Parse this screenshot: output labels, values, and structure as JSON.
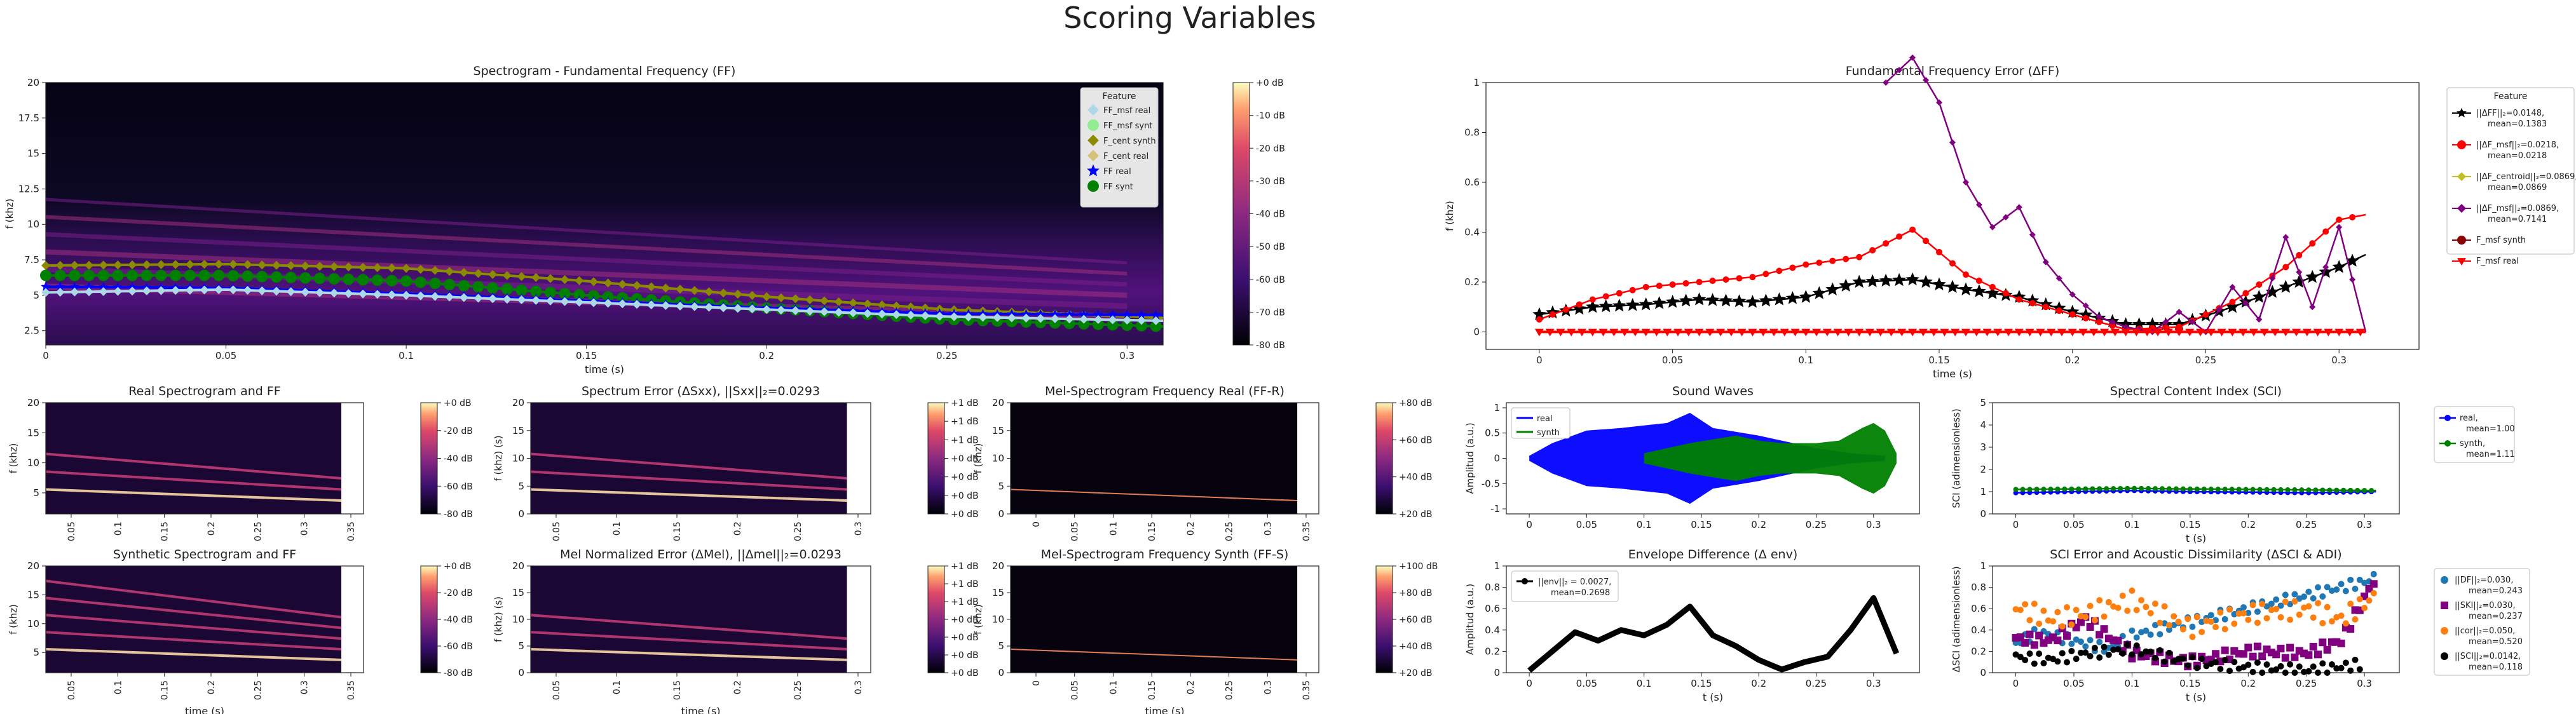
{
  "figure": {
    "title": "Scoring Variables"
  },
  "palette": {
    "black": "#000000",
    "blue": "#0000ff",
    "green": "#008000",
    "red": "#ff0000",
    "purple": "#800080",
    "orange": "#ff7f0e",
    "sky": "#1f77b4",
    "magma_low": "#000004",
    "magma_mid": "#8c2981",
    "magma_high": "#fcfdbf"
  },
  "chart_data": [
    {
      "id": "main-spectrogram",
      "type": "heatmap",
      "title": "Spectrogram - Fundamental Frequency (FF)",
      "xlabel": "time (s)",
      "ylabel": "f (khz)",
      "xlim": [
        0,
        0.31
      ],
      "ylim": [
        1.5,
        20
      ],
      "xticks": [
        0,
        0.05,
        0.1,
        0.15,
        0.2,
        0.25,
        0.3
      ],
      "yticks": [
        2.5,
        5,
        7.5,
        10,
        12.5,
        15,
        17.5,
        20
      ],
      "colorbar": {
        "ticks": [
          "+0 dB",
          "-10 dB",
          "-20 dB",
          "-30 dB",
          "-40 dB",
          "-50 dB",
          "-60 dB",
          "-70 dB",
          "-80 dB"
        ]
      },
      "legend": {
        "title": "Feature",
        "entries": [
          "FF_msf real",
          "FF_msf synt",
          "F_cent synth",
          "F_cent real",
          "FF real",
          "FF synt"
        ]
      },
      "series": [
        {
          "name": "F_cent synth",
          "color": "#8b8b00",
          "x": [
            0,
            0.05,
            0.1,
            0.15,
            0.2,
            0.25,
            0.31
          ],
          "y": [
            7.1,
            7.2,
            6.9,
            6.0,
            4.9,
            4.0,
            3.4
          ]
        },
        {
          "name": "FF synt",
          "color": "#008000",
          "x": [
            0,
            0.05,
            0.1,
            0.15,
            0.2,
            0.25,
            0.31
          ],
          "y": [
            6.4,
            6.4,
            6.0,
            5.0,
            4.1,
            3.3,
            2.8
          ]
        },
        {
          "name": "FF real",
          "color": "#0000ff",
          "x": [
            0,
            0.05,
            0.1,
            0.15,
            0.2,
            0.25,
            0.31
          ],
          "y": [
            5.6,
            5.5,
            5.1,
            4.6,
            4.1,
            3.7,
            3.6
          ]
        },
        {
          "name": "FF_msf real",
          "color": "#add8e6",
          "x": [
            0,
            0.05,
            0.1,
            0.15,
            0.2,
            0.25,
            0.31
          ],
          "y": [
            5.2,
            5.4,
            5.0,
            4.5,
            4.0,
            3.5,
            3.2
          ]
        }
      ]
    },
    {
      "id": "ff-error",
      "type": "line",
      "title": "Fundamental Frequency Error (ΔFF)",
      "xlabel": "time (s)",
      "ylabel": "f (khz)",
      "xlim": [
        -0.02,
        0.33
      ],
      "ylim": [
        -0.07,
        1.0
      ],
      "xticks": [
        0,
        0.05,
        0.1,
        0.15,
        0.2,
        0.25,
        0.3
      ],
      "yticks": [
        0,
        0.2,
        0.4,
        0.6,
        0.8,
        1.0
      ],
      "legend": {
        "title": "Feature",
        "entries": [
          "||ΔFF||₂=0.0148,\nmean=0.1383",
          "||ΔF_msf||₂=0.0218,\nmean=0.0218",
          "||ΔF_centroid||₂=0.0869,\nmean=0.0869",
          "||ΔF_msf||₂=0.0869,\nmean=0.7141",
          "F_msf synth",
          "F_msf real"
        ]
      },
      "series": [
        {
          "name": "ΔFF",
          "color": "#000000",
          "x": [
            0,
            0.02,
            0.04,
            0.06,
            0.08,
            0.1,
            0.12,
            0.14,
            0.16,
            0.18,
            0.2,
            0.22,
            0.24,
            0.26,
            0.28,
            0.3,
            0.31
          ],
          "y": [
            0.07,
            0.1,
            0.11,
            0.13,
            0.12,
            0.14,
            0.2,
            0.21,
            0.17,
            0.14,
            0.08,
            0.03,
            0.03,
            0.1,
            0.18,
            0.26,
            0.31
          ]
        },
        {
          "name": "ΔF_msf",
          "color": "#ff0000",
          "x": [
            0,
            0.02,
            0.04,
            0.06,
            0.08,
            0.1,
            0.12,
            0.14,
            0.16,
            0.18,
            0.2,
            0.22,
            0.24,
            0.26,
            0.28,
            0.3,
            0.31
          ],
          "y": [
            0.05,
            0.13,
            0.18,
            0.2,
            0.22,
            0.27,
            0.3,
            0.41,
            0.23,
            0.13,
            0.07,
            0.01,
            0.02,
            0.12,
            0.26,
            0.45,
            0.47
          ]
        },
        {
          "name": "ΔF_msf mean",
          "color": "#800080",
          "x": [
            0.13,
            0.14,
            0.15,
            0.16,
            0.17,
            0.18,
            0.19,
            0.2,
            0.21,
            0.22,
            0.23,
            0.24,
            0.25,
            0.26,
            0.27,
            0.28,
            0.29,
            0.3,
            0.31
          ],
          "y": [
            1.0,
            1.1,
            0.92,
            0.6,
            0.42,
            0.5,
            0.28,
            0.15,
            0.06,
            0.02,
            0.0,
            0.08,
            0.0,
            0.18,
            0.05,
            0.38,
            0.1,
            0.42,
            0.0
          ]
        },
        {
          "name": "F_msf real",
          "color": "#ff0000",
          "x": [
            0,
            0.31
          ],
          "y": [
            0,
            0
          ]
        }
      ]
    },
    {
      "id": "real-spectrogram",
      "type": "heatmap",
      "title": "Real Spectrogram and FF",
      "xlabel": "",
      "ylabel": "f (khz)",
      "xticks": [
        "0.05",
        "0.1",
        "0.15",
        "0.2",
        "0.25",
        "0.3",
        "0.35"
      ],
      "yticks": [
        "20",
        "15",
        "10",
        "5"
      ],
      "colorbar": {
        "ticks": [
          "+0 dB",
          "-20 dB",
          "-40 dB",
          "-60 dB",
          "-80 dB"
        ]
      }
    },
    {
      "id": "spectrum-error",
      "type": "heatmap",
      "title": "Spectrum Error (ΔSxx), ||Sxx||₂=0.0293",
      "ylabel": "f (khz) (s)",
      "xticks": [
        "0.05",
        "0.1",
        "0.15",
        "0.2",
        "0.25",
        "0.3"
      ],
      "yticks": [
        "20",
        "15",
        "10",
        "5",
        "0"
      ],
      "colorbar": {
        "ticks": [
          "+1 dB",
          "+1 dB",
          "+1 dB",
          "+0 dB",
          "+0 dB",
          "+0 dB",
          "+0 dB"
        ]
      }
    },
    {
      "id": "mel-real",
      "type": "heatmap",
      "title": "Mel-Spectrogram Frequency Real (FF-R)",
      "ylabel": "f (khz)",
      "xticks": [
        "0",
        "0.05",
        "0.1",
        "0.15",
        "0.2",
        "0.25",
        "0.3",
        "0.35"
      ],
      "yticks": [
        "20",
        "15",
        "10",
        "5",
        "0"
      ],
      "colorbar": {
        "ticks": [
          "+80 dB",
          "+60 dB",
          "+40 dB",
          "+20 dB"
        ]
      }
    },
    {
      "id": "synthetic-spectrogram",
      "type": "heatmap",
      "title": "Synthetic Spectrogram and FF",
      "xlabel": "time (s)",
      "ylabel": "f (khz)",
      "xticks": [
        "0.05",
        "0.1",
        "0.15",
        "0.2",
        "0.25",
        "0.3",
        "0.35"
      ],
      "yticks": [
        "20",
        "15",
        "10",
        "5"
      ],
      "colorbar": {
        "ticks": [
          "+0 dB",
          "-20 dB",
          "-40 dB",
          "-60 dB",
          "-80 dB"
        ]
      }
    },
    {
      "id": "mel-normalized-error",
      "type": "heatmap",
      "title": "Mel Normalized Error (ΔMel), ||Δmel||₂=0.0293",
      "xlabel": "time (s)",
      "ylabel": "f (khz) (s)",
      "xticks": [
        "0.05",
        "0.1",
        "0.15",
        "0.2",
        "0.25",
        "0.3"
      ],
      "yticks": [
        "20",
        "15",
        "10",
        "5",
        "0"
      ],
      "colorbar": {
        "ticks": [
          "+1 dB",
          "+1 dB",
          "+1 dB",
          "+0 dB",
          "+0 dB",
          "+0 dB",
          "+0 dB"
        ]
      }
    },
    {
      "id": "mel-synth",
      "type": "heatmap",
      "title": "Mel-Spectrogram Frequency Synth (FF-S)",
      "xlabel": "time (s)",
      "ylabel": "f (khz)",
      "xticks": [
        "0",
        "0.05",
        "0.1",
        "0.15",
        "0.2",
        "0.25",
        "0.3",
        "0.35"
      ],
      "yticks": [
        "20",
        "15",
        "10",
        "5",
        "0"
      ],
      "colorbar": {
        "ticks": [
          "+100 dB",
          "+80 dB",
          "+60 dB",
          "+40 dB",
          "+20 dB"
        ]
      }
    },
    {
      "id": "sound-waves",
      "type": "area",
      "title": "Sound Waves",
      "xlabel": "",
      "ylabel": "Amplitud (a.u.)",
      "xlim": [
        -0.02,
        0.34
      ],
      "ylim": [
        -1.1,
        1.1
      ],
      "xticks": [
        0,
        0.05,
        0.1,
        0.15,
        0.2,
        0.25,
        0.3
      ],
      "yticks": [
        -1.0,
        -0.5,
        0.0,
        0.5,
        1.0
      ],
      "legend": {
        "entries": [
          "real",
          "synth"
        ]
      },
      "series": [
        {
          "name": "real",
          "color": "#0000ff",
          "x": [
            0,
            0.02,
            0.05,
            0.08,
            0.1,
            0.12,
            0.14,
            0.16,
            0.2,
            0.22,
            0.25,
            0.28,
            0.31
          ],
          "y": [
            0.05,
            0.3,
            0.55,
            0.6,
            0.65,
            0.7,
            0.9,
            0.6,
            0.45,
            0.35,
            0.2,
            0.1,
            0.05
          ]
        },
        {
          "name": "synth",
          "color": "#008000",
          "x": [
            0.1,
            0.14,
            0.18,
            0.2,
            0.22,
            0.25,
            0.27,
            0.29,
            0.3,
            0.31,
            0.32
          ],
          "y": [
            0.1,
            0.3,
            0.45,
            0.35,
            0.3,
            0.3,
            0.35,
            0.6,
            0.7,
            0.55,
            0.1
          ]
        }
      ]
    },
    {
      "id": "sci",
      "type": "line",
      "title": "Spectral Content Index (SCI)",
      "xlabel": "t (s)",
      "ylabel": "SCI (adimensionless)",
      "xlim": [
        -0.02,
        0.33
      ],
      "ylim": [
        0,
        5
      ],
      "xticks": [
        0,
        0.05,
        0.1,
        0.15,
        0.2,
        0.25,
        0.3
      ],
      "yticks": [
        0,
        1,
        2,
        3,
        4,
        5
      ],
      "legend": {
        "entries": [
          "real,\nmean=1.00",
          "synth,\nmean=1.11"
        ]
      },
      "series": [
        {
          "name": "real",
          "color": "#0000ff",
          "x": [
            0,
            0.05,
            0.1,
            0.15,
            0.2,
            0.25,
            0.31
          ],
          "y": [
            0.95,
            1.0,
            1.05,
            1.0,
            0.98,
            0.95,
            1.0
          ]
        },
        {
          "name": "synth",
          "color": "#008000",
          "x": [
            0,
            0.05,
            0.1,
            0.15,
            0.2,
            0.25,
            0.31
          ],
          "y": [
            1.1,
            1.12,
            1.15,
            1.12,
            1.1,
            1.08,
            1.05
          ]
        }
      ]
    },
    {
      "id": "envelope-difference",
      "type": "line",
      "title": "Envelope Difference (Δ env)",
      "xlabel": "t (s)",
      "ylabel": "Amplitud (a.u.)",
      "xlim": [
        -0.02,
        0.34
      ],
      "ylim": [
        0,
        1.0
      ],
      "xticks": [
        0,
        0.05,
        0.1,
        0.15,
        0.2,
        0.25,
        0.3
      ],
      "yticks": [
        0.0,
        0.2,
        0.4,
        0.6,
        0.8,
        1.0
      ],
      "legend": {
        "entries": [
          "||env||₂ = 0.0027,\nmean=0.2698"
        ]
      },
      "series": [
        {
          "name": "env",
          "color": "#000000",
          "x": [
            0,
            0.02,
            0.04,
            0.06,
            0.08,
            0.1,
            0.12,
            0.14,
            0.16,
            0.18,
            0.2,
            0.22,
            0.24,
            0.26,
            0.28,
            0.3,
            0.32
          ],
          "y": [
            0.02,
            0.2,
            0.38,
            0.3,
            0.4,
            0.35,
            0.45,
            0.62,
            0.35,
            0.25,
            0.12,
            0.03,
            0.1,
            0.15,
            0.4,
            0.7,
            0.18
          ]
        }
      ]
    },
    {
      "id": "sci-error-adi",
      "type": "scatter",
      "title": "SCI Error and Acoustic Dissimilarity (ΔSCI & ADI)",
      "xlabel": "t (s)",
      "ylabel": "ΔSCI (adimensionless)",
      "xlim": [
        -0.02,
        0.33
      ],
      "ylim": [
        0,
        1.0
      ],
      "xticks": [
        0,
        0.05,
        0.1,
        0.15,
        0.2,
        0.25,
        0.3
      ],
      "yticks": [
        0.0,
        0.2,
        0.4,
        0.6,
        0.8,
        1.0
      ],
      "legend": {
        "entries": [
          "||DF||₂=0.030,\nmean=0.243",
          "||SKI||₂=0.030,\nmean=0.237",
          "||cor||₂=0.050,\nmean=0.520",
          "||SCI||₂=0.0142,\nmean=0.118"
        ]
      },
      "series": [
        {
          "name": "DF",
          "color": "#1f77b4",
          "x": [
            0,
            0.02,
            0.05,
            0.08,
            0.1,
            0.3,
            0.31
          ],
          "y": [
            0.28,
            0.38,
            0.3,
            0.22,
            0.35,
            0.85,
            0.9
          ]
        },
        {
          "name": "SKI",
          "color": "#800080",
          "x": [
            0,
            0.03,
            0.06,
            0.1,
            0.15,
            0.2,
            0.25,
            0.28,
            0.31
          ],
          "y": [
            0.32,
            0.3,
            0.5,
            0.18,
            0.1,
            0.2,
            0.18,
            0.3,
            0.9
          ]
        },
        {
          "name": "cor",
          "color": "#ff7f0e",
          "x": [
            0,
            0.03,
            0.06,
            0.1,
            0.15,
            0.2,
            0.25,
            0.28,
            0.31
          ],
          "y": [
            0.62,
            0.5,
            0.55,
            0.68,
            0.42,
            0.55,
            0.6,
            0.5,
            0.72
          ]
        },
        {
          "name": "SCI",
          "color": "#000000",
          "x": [
            0,
            0.03,
            0.06,
            0.1,
            0.15,
            0.2,
            0.25,
            0.3
          ],
          "y": [
            0.15,
            0.12,
            0.18,
            0.22,
            0.1,
            0.05,
            0.02,
            0.08
          ]
        }
      ]
    }
  ]
}
